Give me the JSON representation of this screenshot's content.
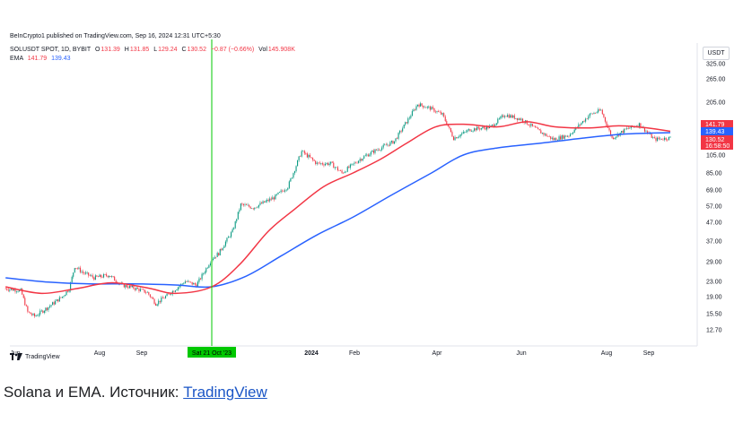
{
  "published_text": "BeInCrypto1 published on TradingView.com, Sep 16, 2024 12:31 UTC+5:30",
  "legend": {
    "symbol": "SOLUSDT SPOT, 1D, BYBIT",
    "o_label": "O",
    "o_value": "131.39",
    "h_label": "H",
    "h_value": "131.85",
    "l_label": "L",
    "l_value": "129.24",
    "c_label": "C",
    "c_value": "130.52",
    "change": "−0.87 (−0.66%)",
    "vol_label": "Vol",
    "vol_value": "145.908K",
    "ema_label": "EMA",
    "ema1_value": "141.79",
    "ema2_value": "139.43"
  },
  "currency": "USDT",
  "watermark": "TradingView",
  "caption": {
    "text": "Solana и EMA. Источник: ",
    "link": "TradingView"
  },
  "colors": {
    "up": "#089981",
    "down": "#f23645",
    "ema_fast": "#f23645",
    "ema_slow": "#2962ff",
    "marker": "#00c800"
  },
  "chart_data": {
    "type": "candlestick",
    "title": "SOLUSDT SPOT, 1D, BYBIT",
    "y_scale": "log",
    "y_ticks": [
      "325.00",
      "265.00",
      "205.00",
      "105.00",
      "85.00",
      "69.00",
      "57.00",
      "47.00",
      "37.00",
      "29.00",
      "23.00",
      "19.00",
      "15.50",
      "12.70"
    ],
    "y_tick_values": [
      325,
      265,
      205,
      105,
      85,
      69,
      57,
      47,
      37,
      29,
      23,
      19,
      15.5,
      12.7
    ],
    "x_ticks": [
      "Jun",
      "Aug",
      "Sep",
      "2024",
      "Feb",
      "Apr",
      "Jun",
      "Aug",
      "Sep"
    ],
    "x_tick_dates": [
      "2023-06-01",
      "2023-08-01",
      "2023-09-01",
      "2024-01-01",
      "2024-02-01",
      "2024-04-01",
      "2024-06-01",
      "2024-08-01",
      "2024-09-01"
    ],
    "date_range": [
      "2023-05-25",
      "2024-09-16"
    ],
    "vertical_marker": {
      "date": "2023-10-21",
      "label": "Sat 21 Oct '23"
    },
    "price_labels": [
      {
        "value": 141.79,
        "text": "141.79",
        "series": "ema_fast"
      },
      {
        "value": 139.43,
        "text": "139.43",
        "series": "ema_slow"
      },
      {
        "value": 130.52,
        "text": "130.52",
        "sub": "16:58:50",
        "series": "last"
      }
    ],
    "close_series": [
      [
        "2023-05-25",
        21.0
      ],
      [
        "2023-06-05",
        20.5
      ],
      [
        "2023-06-10",
        15.8
      ],
      [
        "2023-06-15",
        15.0
      ],
      [
        "2023-06-25",
        16.8
      ],
      [
        "2023-07-05",
        19.0
      ],
      [
        "2023-07-10",
        21.0
      ],
      [
        "2023-07-14",
        27.5
      ],
      [
        "2023-07-20",
        25.5
      ],
      [
        "2023-07-28",
        24.0
      ],
      [
        "2023-08-08",
        24.8
      ],
      [
        "2023-08-17",
        22.0
      ],
      [
        "2023-08-28",
        21.0
      ],
      [
        "2023-09-05",
        20.0
      ],
      [
        "2023-09-11",
        17.5
      ],
      [
        "2023-09-20",
        19.5
      ],
      [
        "2023-10-02",
        23.0
      ],
      [
        "2023-10-10",
        22.0
      ],
      [
        "2023-10-21",
        30.0
      ],
      [
        "2023-10-26",
        32.0
      ],
      [
        "2023-11-05",
        42.0
      ],
      [
        "2023-11-11",
        58.0
      ],
      [
        "2023-11-20",
        56.0
      ],
      [
        "2023-12-05",
        63.0
      ],
      [
        "2023-12-15",
        72.0
      ],
      [
        "2023-12-25",
        110.0
      ],
      [
        "2024-01-05",
        95.0
      ],
      [
        "2024-01-15",
        95.0
      ],
      [
        "2024-01-23",
        85.0
      ],
      [
        "2024-02-05",
        100.0
      ],
      [
        "2024-02-15",
        110.0
      ],
      [
        "2024-03-01",
        125.0
      ],
      [
        "2024-03-18",
        200.0
      ],
      [
        "2024-03-27",
        190.0
      ],
      [
        "2024-04-05",
        175.0
      ],
      [
        "2024-04-13",
        130.0
      ],
      [
        "2024-04-25",
        145.0
      ],
      [
        "2024-05-10",
        150.0
      ],
      [
        "2024-05-20",
        175.0
      ],
      [
        "2024-06-01",
        165.0
      ],
      [
        "2024-06-15",
        140.0
      ],
      [
        "2024-06-24",
        128.0
      ],
      [
        "2024-07-05",
        135.0
      ],
      [
        "2024-07-20",
        175.0
      ],
      [
        "2024-07-28",
        185.0
      ],
      [
        "2024-08-05",
        130.0
      ],
      [
        "2024-08-15",
        145.0
      ],
      [
        "2024-08-25",
        155.0
      ],
      [
        "2024-09-05",
        128.0
      ],
      [
        "2024-09-16",
        130.52
      ]
    ],
    "ema_fast": [
      [
        "2023-05-25",
        21.5
      ],
      [
        "2023-06-20",
        19.8
      ],
      [
        "2023-07-15",
        21.0
      ],
      [
        "2023-08-10",
        22.6
      ],
      [
        "2023-09-05",
        21.2
      ],
      [
        "2023-09-25",
        19.8
      ],
      [
        "2023-10-21",
        21.5
      ],
      [
        "2023-11-10",
        28.0
      ],
      [
        "2023-12-01",
        42.0
      ],
      [
        "2023-12-20",
        55.0
      ],
      [
        "2024-01-10",
        72.0
      ],
      [
        "2024-01-31",
        85.0
      ],
      [
        "2024-02-20",
        100.0
      ],
      [
        "2024-03-10",
        122.0
      ],
      [
        "2024-03-31",
        150.0
      ],
      [
        "2024-04-20",
        155.0
      ],
      [
        "2024-05-15",
        150.0
      ],
      [
        "2024-06-05",
        160.0
      ],
      [
        "2024-06-25",
        150.0
      ],
      [
        "2024-07-20",
        148.0
      ],
      [
        "2024-08-10",
        152.0
      ],
      [
        "2024-08-31",
        148.0
      ],
      [
        "2024-09-16",
        141.79
      ]
    ],
    "ema_slow": [
      [
        "2023-05-25",
        24.0
      ],
      [
        "2023-06-25",
        22.8
      ],
      [
        "2023-07-25",
        22.3
      ],
      [
        "2023-08-25",
        22.3
      ],
      [
        "2023-09-25",
        22.0
      ],
      [
        "2023-10-21",
        21.5
      ],
      [
        "2023-11-15",
        24.5
      ],
      [
        "2023-12-10",
        31.0
      ],
      [
        "2024-01-05",
        40.0
      ],
      [
        "2024-01-31",
        50.0
      ],
      [
        "2024-02-28",
        65.0
      ],
      [
        "2024-03-28",
        85.0
      ],
      [
        "2024-04-20",
        105.0
      ],
      [
        "2024-05-15",
        115.0
      ],
      [
        "2024-06-15",
        122.0
      ],
      [
        "2024-07-15",
        130.0
      ],
      [
        "2024-08-15",
        137.0
      ],
      [
        "2024-09-16",
        139.43
      ]
    ]
  }
}
